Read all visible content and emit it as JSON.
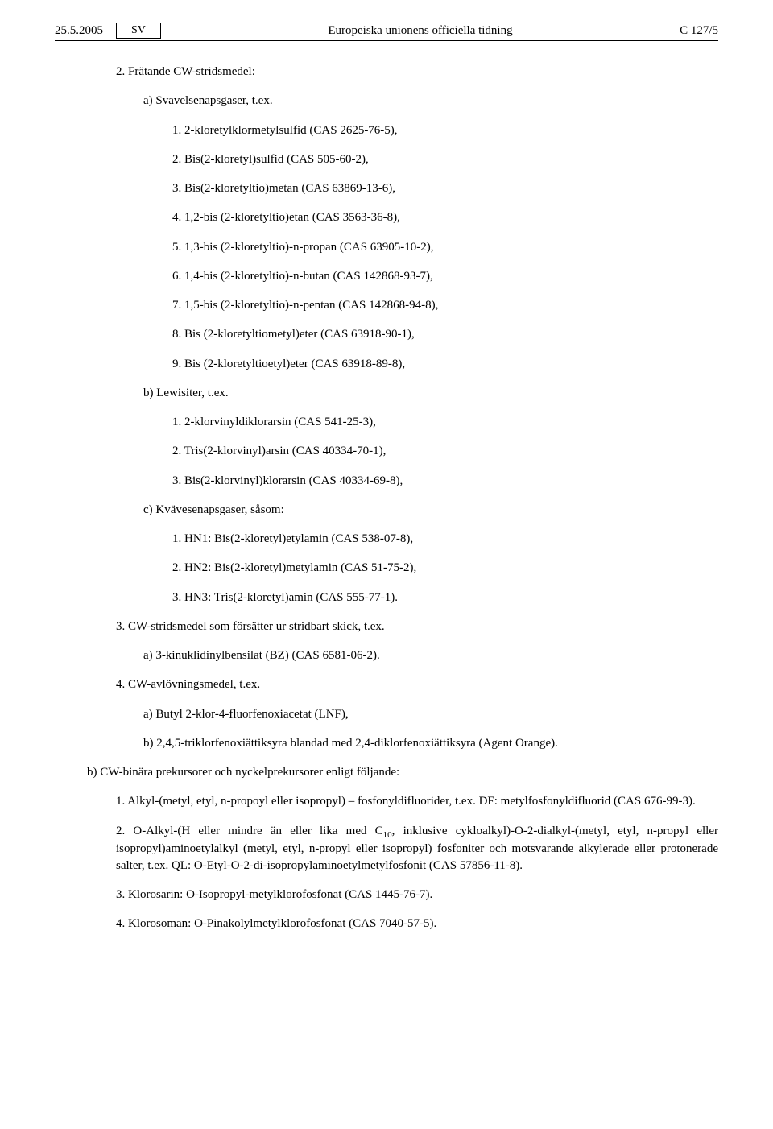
{
  "header": {
    "date": "25.5.2005",
    "lang": "SV",
    "title": "Europeiska unionens officiella tidning",
    "pageref": "C 127/5"
  },
  "sec2": {
    "heading": "2. Frätande CW-stridsmedel:",
    "a": {
      "label": "a) Svavelsenapsgaser, t.ex.",
      "i1": "1. 2-kloretylklormetylsulfid (CAS 2625-76-5),",
      "i2": "2. Bis(2-kloretyl)sulfid (CAS 505-60-2),",
      "i3": "3. Bis(2-kloretyltio)metan (CAS 63869-13-6),",
      "i4": "4. 1,2-bis (2-kloretyltio)etan (CAS 3563-36-8),",
      "i5": "5. 1,3-bis (2-kloretyltio)-n-propan (CAS 63905-10-2),",
      "i6": "6. 1,4-bis (2-kloretyltio)-n-butan (CAS 142868-93-7),",
      "i7": "7. 1,5-bis (2-kloretyltio)-n-pentan (CAS 142868-94-8),",
      "i8": "8. Bis (2-kloretyltiometyl)eter (CAS 63918-90-1),",
      "i9": "9. Bis (2-kloretyltioetyl)eter (CAS 63918-89-8),"
    },
    "b": {
      "label": "b) Lewisiter, t.ex.",
      "i1": "1. 2-klorvinyldiklorarsin (CAS 541-25-3),",
      "i2": "2. Tris(2-klorvinyl)arsin (CAS 40334-70-1),",
      "i3": "3. Bis(2-klorvinyl)klorarsin (CAS 40334-69-8),"
    },
    "c": {
      "label": "c) Kvävesenapsgaser, såsom:",
      "i1": "1. HN1: Bis(2-kloretyl)etylamin (CAS 538-07-8),",
      "i2": "2. HN2: Bis(2-kloretyl)metylamin (CAS 51-75-2),",
      "i3": "3. HN3: Tris(2-kloretyl)amin (CAS 555-77-1)."
    }
  },
  "sec3": {
    "heading": "3. CW-stridsmedel som försätter ur stridbart skick, t.ex.",
    "a": "a) 3-kinuklidinylbensilat (BZ) (CAS 6581-06-2)."
  },
  "sec4": {
    "heading": "4. CW-avlövningsmedel, t.ex.",
    "a": "a) Butyl 2-klor-4-fluorfenoxiacetat (LNF),",
    "b": "b) 2,4,5-triklorfenoxiättiksyra blandad med 2,4-diklorfenoxiättiksyra (Agent Orange)."
  },
  "secB": {
    "heading": "b) CW-binära prekursorer och nyckelprekursorer enligt följande:",
    "i1": "1. Alkyl-(metyl, etyl, n-propoyl eller isopropyl) – fosfonyldifluorider, t.ex. DF: metylfosfonyldifluorid (CAS 676-99-3).",
    "i2a": "2. O-Alkyl-(H eller mindre än eller lika med C",
    "i2sub": "10",
    "i2b": ", inklusive cykloalkyl)-O-2-dialkyl-(metyl, etyl, n-propyl eller isopropyl)aminoetylalkyl (metyl, etyl, n-propyl eller isopropyl) fosfoniter och motsvarande alkylerade eller protonerade salter, t.ex. QL: O-Etyl-O-2-di-isopropylaminoetylmetylfosfonit (CAS 57856-11-8).",
    "i3": "3. Klorosarin: O-Isopropyl-metylklorofosfonat (CAS 1445-76-7).",
    "i4": "4. Klorosoman: O-Pinakolylmetylklorofosfonat (CAS 7040-57-5)."
  }
}
